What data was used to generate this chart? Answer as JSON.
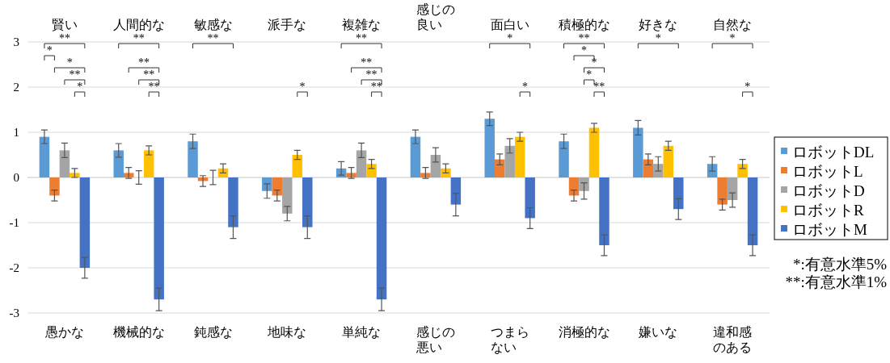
{
  "chart_data": {
    "type": "bar",
    "categories": [
      "愚かな",
      "機械的な",
      "鈍感な",
      "地味な",
      "単純な",
      "感じの悪い",
      "つまらない",
      "消極的な",
      "嫌いな",
      "違和感のある"
    ],
    "series": [
      {
        "name": "ロボットDL",
        "color": "#5b9bd5",
        "values": [
          0.9,
          0.6,
          0.8,
          -0.3,
          0.2,
          0.9,
          1.3,
          0.8,
          1.1,
          0.3
        ],
        "errors": [
          0.15,
          0.15,
          0.16,
          0.16,
          0.15,
          0.15,
          0.15,
          0.16,
          0.16,
          0.16
        ]
      },
      {
        "name": "ロボットL",
        "color": "#ed7d31",
        "values": [
          -0.4,
          0.1,
          -0.08,
          -0.4,
          0.1,
          0.1,
          0.4,
          -0.4,
          0.4,
          -0.6
        ],
        "errors": [
          0.12,
          0.12,
          0.12,
          0.12,
          0.12,
          0.12,
          0.12,
          0.12,
          0.12,
          0.12
        ]
      },
      {
        "name": "ロボットD",
        "color": "#a5a5a5",
        "values": [
          0.6,
          0.0,
          0.0,
          -0.8,
          0.6,
          0.5,
          0.7,
          -0.3,
          0.3,
          -0.5
        ],
        "errors": [
          0.16,
          0.15,
          0.16,
          0.16,
          0.16,
          0.16,
          0.16,
          0.18,
          0.16,
          0.16
        ]
      },
      {
        "name": "ロボットR",
        "color": "#ffc000",
        "values": [
          0.1,
          0.6,
          0.2,
          0.5,
          0.3,
          0.2,
          0.9,
          1.1,
          0.7,
          0.3
        ],
        "errors": [
          0.1,
          0.1,
          0.1,
          0.1,
          0.1,
          0.1,
          0.1,
          0.1,
          0.1,
          0.1
        ]
      },
      {
        "name": "ロボットM",
        "color": "#4472c4",
        "values": [
          -2.0,
          -2.7,
          -1.1,
          -1.1,
          -2.7,
          -0.6,
          -0.9,
          -1.5,
          -0.7,
          -1.5
        ],
        "errors": [
          0.23,
          0.25,
          0.25,
          0.25,
          0.25,
          0.25,
          0.23,
          0.23,
          0.23,
          0.23
        ]
      }
    ],
    "ylim": [
      -3,
      3
    ],
    "yticks": [
      -3,
      -2,
      -1,
      0,
      1,
      2,
      3
    ],
    "grid": "y",
    "legend": "right",
    "annotations": [
      "賢い",
      "人間的な",
      "敏感な",
      "派手な",
      "複雑な",
      "感じの良い",
      "面白い",
      "積極的な",
      "好きな",
      "自然な",
      "**",
      "*",
      "*",
      "**",
      "*",
      "**",
      "**",
      "**",
      "**",
      "**",
      "*",
      "**",
      "**",
      "**",
      "**",
      "*",
      "*",
      "**",
      "*",
      "*",
      "*",
      "**",
      "*",
      "*",
      "*",
      "*:有意水準5%",
      "**:有意水準1%"
    ]
  }
}
